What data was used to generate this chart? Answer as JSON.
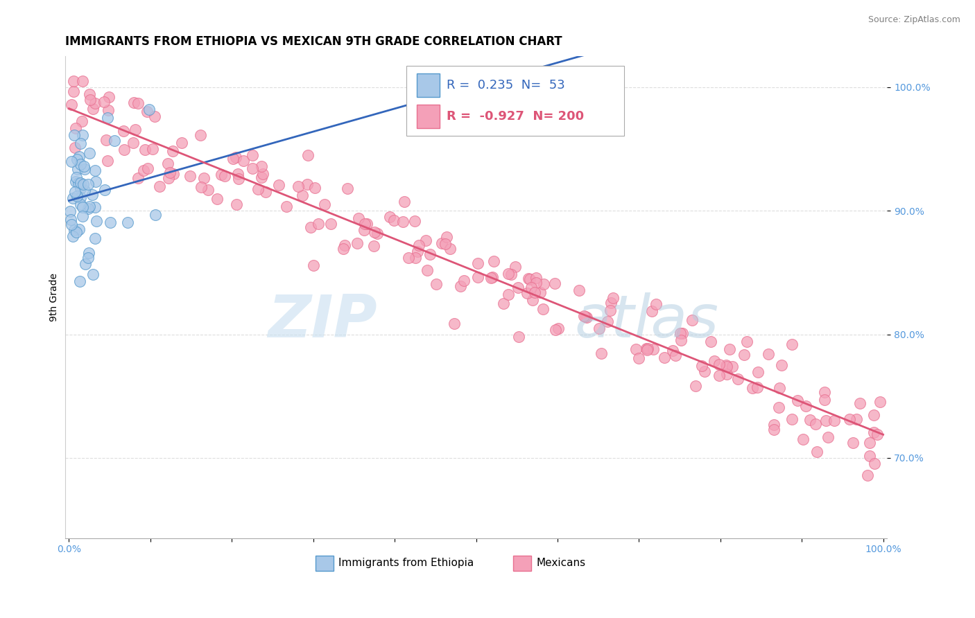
{
  "title": "IMMIGRANTS FROM ETHIOPIA VS MEXICAN 9TH GRADE CORRELATION CHART",
  "source_text": "Source: ZipAtlas.com",
  "ylabel": "9th Grade",
  "legend_R1": "0.235",
  "legend_N1": "53",
  "legend_R2": "-0.927",
  "legend_N2": "200",
  "legend_label1": "Immigrants from Ethiopia",
  "legend_label2": "Mexicans",
  "blue_dot_color": "#a8c8e8",
  "blue_edge_color": "#5599cc",
  "pink_dot_color": "#f4a0b8",
  "pink_edge_color": "#e87090",
  "blue_line_color": "#3366bb",
  "pink_line_color": "#dd5577",
  "ytick_color": "#5599dd",
  "xtick_color": "#5599dd",
  "background_color": "#ffffff",
  "grid_color": "#dddddd",
  "watermark_zip_color": "#c8dff0",
  "watermark_atlas_color": "#b0cce0",
  "title_fontsize": 12,
  "axis_label_fontsize": 10,
  "tick_fontsize": 10,
  "source_fontsize": 9
}
